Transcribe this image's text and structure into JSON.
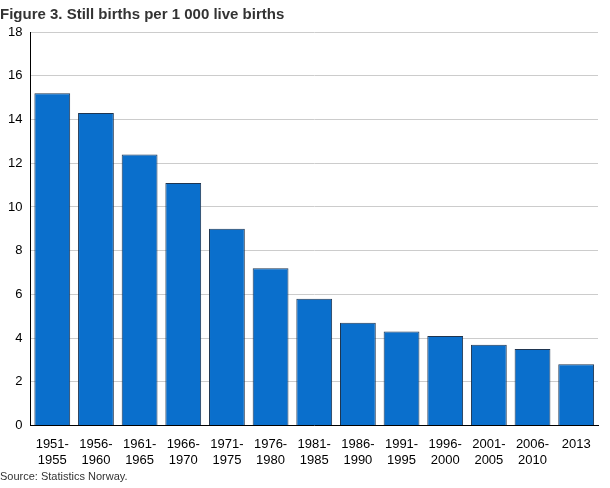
{
  "chart_data": {
    "type": "bar",
    "title": "Figure 3. Still births per 1 000 live births",
    "source": "Source: Statistics Norway.",
    "categories": [
      "1951-1955",
      "1956-1960",
      "1961-1965",
      "1966-1970",
      "1971-1975",
      "1976-1980",
      "1981-1985",
      "1986-1990",
      "1991-1995",
      "1996-2000",
      "2001-2005",
      "2006-2010",
      "2013"
    ],
    "values": [
      15.2,
      14.3,
      12.4,
      11.1,
      9.0,
      7.2,
      5.8,
      4.7,
      4.3,
      4.1,
      3.7,
      3.5,
      2.8
    ],
    "color": "#0a6fcc",
    "ylim": [
      0,
      18
    ],
    "yticks": [
      0,
      2,
      4,
      6,
      8,
      10,
      12,
      14,
      16,
      18
    ],
    "grid": true
  }
}
